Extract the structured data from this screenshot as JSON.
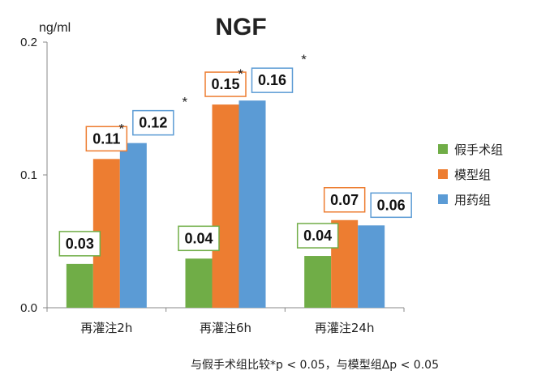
{
  "chart_data": {
    "type": "bar",
    "title": "NGF",
    "ylabel": "ng/ml",
    "xlabel": "",
    "ylim": [
      0,
      0.2
    ],
    "yticks": [
      "0.0",
      "0.1",
      "0.2"
    ],
    "categories": [
      "再灌注2h",
      "再灌注6h",
      "再灌注24h"
    ],
    "series": [
      {
        "name": "假手术组",
        "color": "#70ad47",
        "values": [
          0.033,
          0.037,
          0.039
        ],
        "labels": [
          "0.03",
          "0.04",
          "0.04"
        ]
      },
      {
        "name": "模型组",
        "color": "#ed7d31",
        "values": [
          0.112,
          0.153,
          0.066
        ],
        "labels": [
          "0.11",
          "0.15",
          "0.07"
        ]
      },
      {
        "name": "用药组",
        "color": "#5b9bd5",
        "values": [
          0.124,
          0.156,
          0.062
        ],
        "labels": [
          "0.12",
          "0.16",
          "0.06"
        ]
      }
    ],
    "annotations": [
      {
        "text": "*",
        "category": 0,
        "series": 1
      },
      {
        "text": "*",
        "category": 0,
        "series": 2
      },
      {
        "text": "*",
        "category": 1,
        "series": 1
      },
      {
        "text": "*",
        "category": 1,
        "series": 2
      }
    ],
    "legend_position": "right",
    "grid": false,
    "footnote": "与假手术组比较*p < 0.05，与模型组Δp < 0.05"
  }
}
